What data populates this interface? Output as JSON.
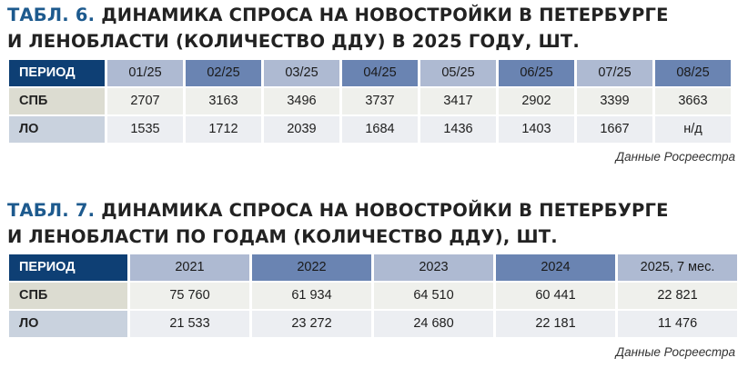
{
  "table1": {
    "tag": "ТАБЛ. 6.",
    "title_line1": "ДИНАМИКА СПРОСА НА НОВОСТРОЙКИ В ПЕТЕРБУРГЕ",
    "title_line2": "И ЛЕНОБЛАСТИ (КОЛИЧЕСТВО ДДУ) В 2025 ГОДУ, ШТ.",
    "header": [
      "ПЕРИОД",
      "01/25",
      "02/25",
      "03/25",
      "04/25",
      "05/25",
      "06/25",
      "07/25",
      "08/25"
    ],
    "rows": [
      {
        "label": "СПБ",
        "values": [
          "2707",
          "3163",
          "3496",
          "3737",
          "3417",
          "2902",
          "3399",
          "3663"
        ]
      },
      {
        "label": "ЛО",
        "values": [
          "1535",
          "1712",
          "2039",
          "1684",
          "1436",
          "1403",
          "1667",
          "н/д"
        ]
      }
    ],
    "source": "Данные Росреестра"
  },
  "table2": {
    "tag": "ТАБЛ. 7.",
    "title_line1": "ДИНАМИКА СПРОСА НА НОВОСТРОЙКИ В ПЕТЕРБУРГЕ",
    "title_line2": "И ЛЕНОБЛАСТИ ПО ГОДАМ (КОЛИЧЕСТВО ДДУ), ШТ.",
    "header": [
      "ПЕРИОД",
      "2021",
      "2022",
      "2023",
      "2024",
      "2025, 7 мес."
    ],
    "rows": [
      {
        "label": "СПБ",
        "values": [
          "75 760",
          "61 934",
          "64 510",
          "60 441",
          "22 821"
        ]
      },
      {
        "label": "ЛО",
        "values": [
          "21 533",
          "23 272",
          "24 680",
          "22 181",
          "11 476"
        ]
      }
    ],
    "source": "Данные Росреестра"
  },
  "colors": {
    "title_tag": "#1d5a8e",
    "header_first": "#0e3f74",
    "header_light": "#aebad2",
    "header_dark": "#6a84b2",
    "row1_label": "#dcdcd1",
    "row1_cell": "#eff0ec",
    "row2_label": "#c9d2de",
    "row2_cell": "#eceef2"
  }
}
